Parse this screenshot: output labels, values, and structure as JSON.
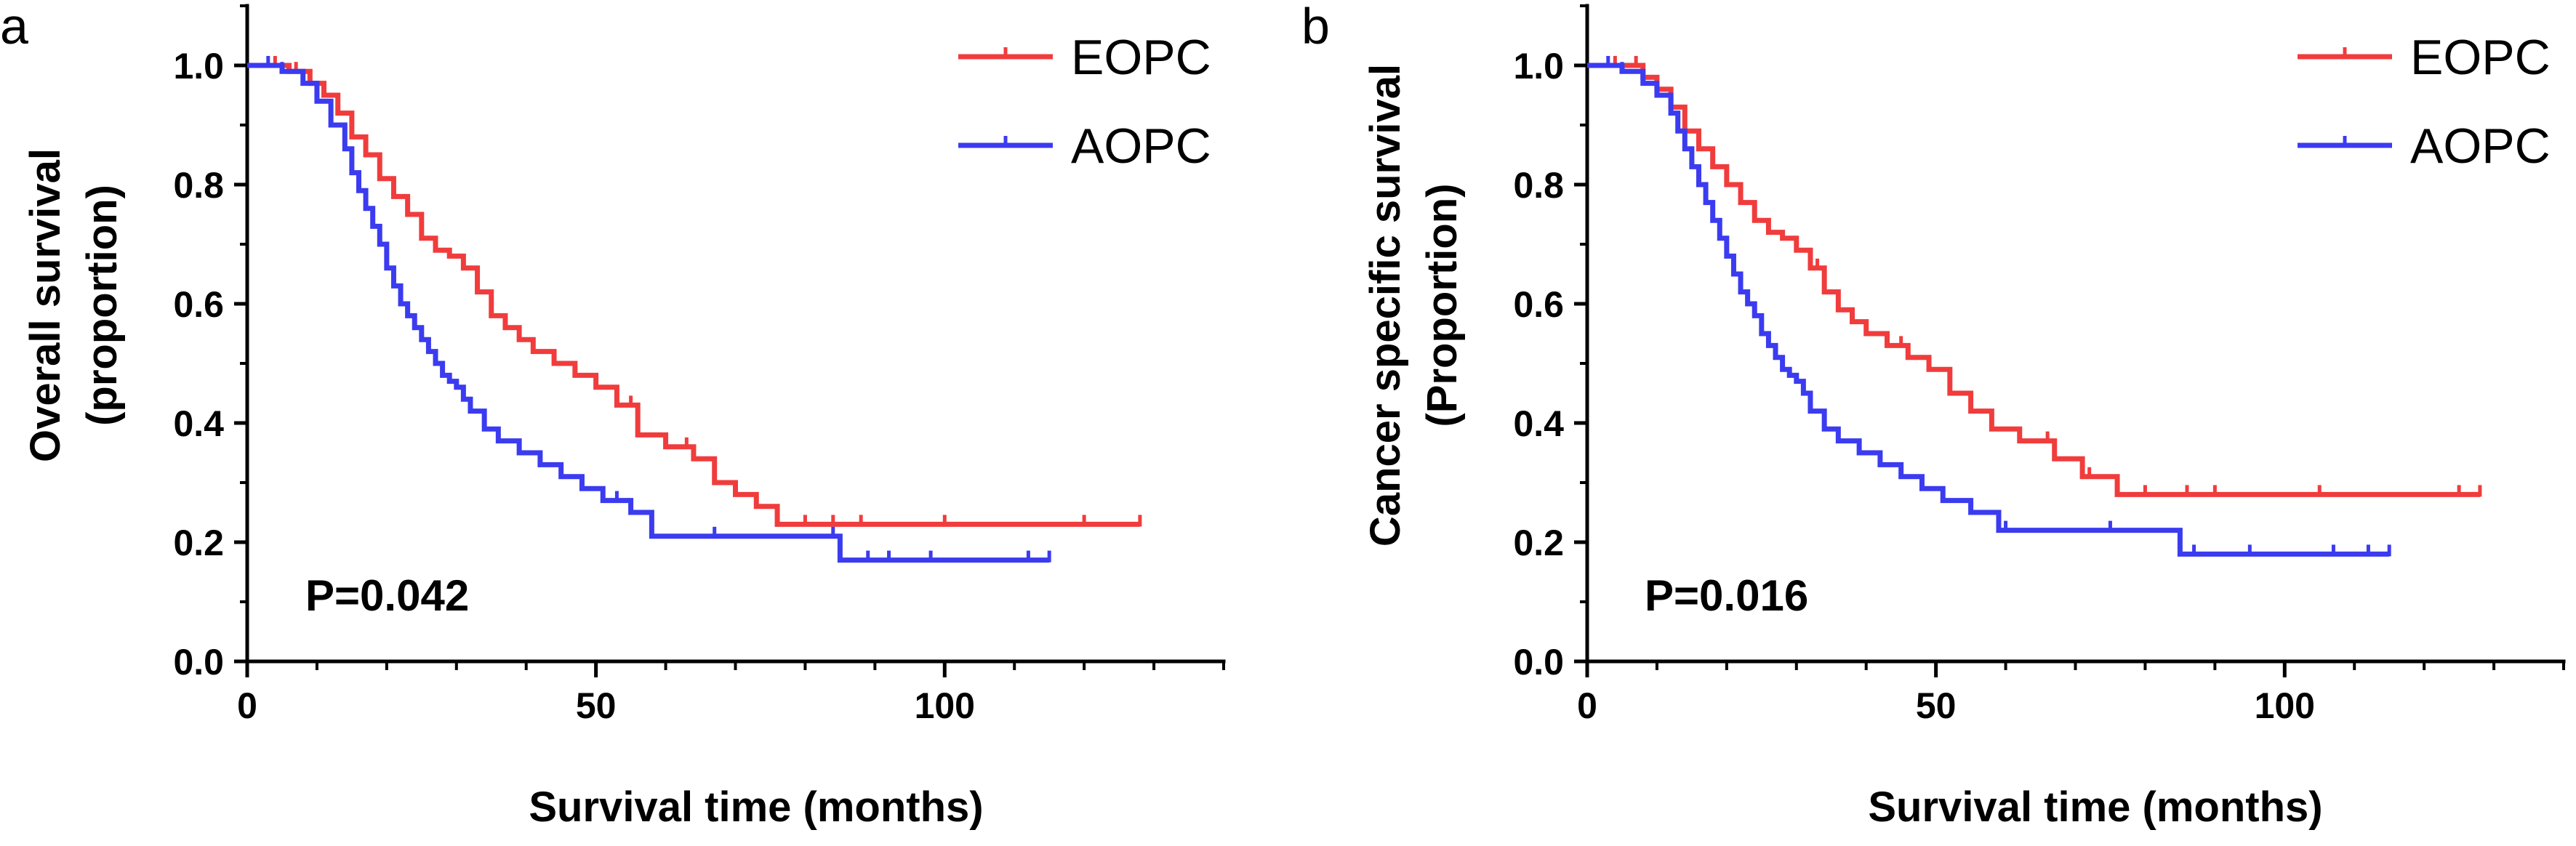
{
  "chart_data": [
    {
      "type": "line",
      "subtype": "kaplan-meier-step",
      "panel": "a",
      "xlabel": "Survival time (months)",
      "ylabel": "Overall survival",
      "ylabel2": "(proportion)",
      "xlim": [
        0,
        140
      ],
      "ylim": [
        0,
        1.1
      ],
      "xticks": [
        0,
        50,
        100
      ],
      "yticks": [
        0.0,
        0.2,
        0.4,
        0.6,
        0.8,
        1.0
      ],
      "xtick_labels": [
        "0",
        "50",
        "100"
      ],
      "ytick_labels": [
        "0.0",
        "0.2",
        "0.4",
        "0.6",
        "0.8",
        "1.0"
      ],
      "annotation": "P=0.042",
      "legend_position": "top-right",
      "series": [
        {
          "name": "EOPC",
          "color": "#f03c3c",
          "x": [
            0,
            6,
            9,
            11,
            13,
            15,
            17,
            19,
            21,
            23,
            25,
            27,
            29,
            31,
            33,
            35,
            37,
            39,
            41,
            44,
            47,
            50,
            53,
            56,
            60,
            64,
            67,
            70,
            73,
            76,
            128
          ],
          "y": [
            1.0,
            0.99,
            0.97,
            0.95,
            0.92,
            0.88,
            0.85,
            0.81,
            0.78,
            0.75,
            0.71,
            0.69,
            0.68,
            0.66,
            0.62,
            0.58,
            0.56,
            0.54,
            0.52,
            0.5,
            0.48,
            0.46,
            0.43,
            0.38,
            0.36,
            0.34,
            0.3,
            0.28,
            0.26,
            0.23,
            0.23
          ],
          "censor_x": [
            4,
            7,
            31,
            44,
            55,
            63,
            80,
            84,
            88,
            100,
            120,
            128
          ]
        },
        {
          "name": "AOPC",
          "color": "#3b3bf0",
          "x": [
            0,
            5,
            8,
            10,
            12,
            14,
            15,
            16,
            17,
            18,
            19,
            20,
            21,
            22,
            23,
            24,
            25,
            26,
            27,
            28,
            29,
            30,
            31,
            32,
            34,
            36,
            39,
            42,
            45,
            48,
            51,
            55,
            58,
            85,
            115
          ],
          "y": [
            1.0,
            0.99,
            0.97,
            0.94,
            0.9,
            0.86,
            0.82,
            0.79,
            0.76,
            0.73,
            0.7,
            0.66,
            0.63,
            0.6,
            0.58,
            0.56,
            0.54,
            0.52,
            0.5,
            0.48,
            0.47,
            0.46,
            0.44,
            0.42,
            0.39,
            0.37,
            0.35,
            0.33,
            0.31,
            0.29,
            0.27,
            0.25,
            0.21,
            0.17,
            0.17
          ],
          "censor_x": [
            3,
            5,
            27,
            53,
            67,
            84,
            89,
            92,
            98,
            112,
            115
          ]
        }
      ]
    },
    {
      "type": "line",
      "subtype": "kaplan-meier-step",
      "panel": "b",
      "xlabel": "Survival time (months)",
      "ylabel": "Cancer specific survival",
      "ylabel2": "(Proportion)",
      "xlim": [
        0,
        140
      ],
      "ylim": [
        0,
        1.1
      ],
      "xticks": [
        0,
        50,
        100
      ],
      "yticks": [
        0.0,
        0.2,
        0.4,
        0.6,
        0.8,
        1.0
      ],
      "xtick_labels": [
        "0",
        "50",
        "100"
      ],
      "ytick_labels": [
        "0.0",
        "0.2",
        "0.4",
        "0.6",
        "0.8",
        "1.0"
      ],
      "annotation": "P=0.016",
      "legend_position": "top-right",
      "series": [
        {
          "name": "EOPC",
          "color": "#f03c3c",
          "x": [
            0,
            8,
            10,
            12,
            14,
            16,
            18,
            20,
            22,
            24,
            26,
            28,
            30,
            32,
            34,
            36,
            38,
            40,
            43,
            46,
            49,
            52,
            55,
            58,
            62,
            67,
            71,
            76,
            128
          ],
          "y": [
            1.0,
            0.98,
            0.96,
            0.93,
            0.89,
            0.86,
            0.83,
            0.8,
            0.77,
            0.74,
            0.72,
            0.71,
            0.69,
            0.66,
            0.62,
            0.59,
            0.57,
            0.55,
            0.53,
            0.51,
            0.49,
            0.45,
            0.42,
            0.39,
            0.37,
            0.34,
            0.31,
            0.28,
            0.28
          ],
          "censor_x": [
            4,
            7,
            33,
            45,
            66,
            72,
            80,
            86,
            90,
            105,
            125,
            128
          ]
        },
        {
          "name": "AOPC",
          "color": "#3b3bf0",
          "x": [
            0,
            5,
            8,
            10,
            12,
            13,
            14,
            15,
            16,
            17,
            18,
            19,
            20,
            21,
            22,
            23,
            24,
            25,
            26,
            27,
            28,
            29,
            30,
            31,
            32,
            34,
            36,
            39,
            42,
            45,
            48,
            51,
            55,
            59,
            85,
            115
          ],
          "y": [
            1.0,
            0.99,
            0.97,
            0.95,
            0.92,
            0.89,
            0.86,
            0.83,
            0.8,
            0.77,
            0.74,
            0.71,
            0.68,
            0.65,
            0.62,
            0.6,
            0.58,
            0.55,
            0.53,
            0.51,
            0.49,
            0.48,
            0.47,
            0.45,
            0.42,
            0.39,
            0.37,
            0.35,
            0.33,
            0.31,
            0.29,
            0.27,
            0.25,
            0.22,
            0.18,
            0.18
          ],
          "censor_x": [
            3,
            5,
            28,
            60,
            75,
            87,
            95,
            107,
            112,
            115
          ]
        }
      ]
    }
  ]
}
